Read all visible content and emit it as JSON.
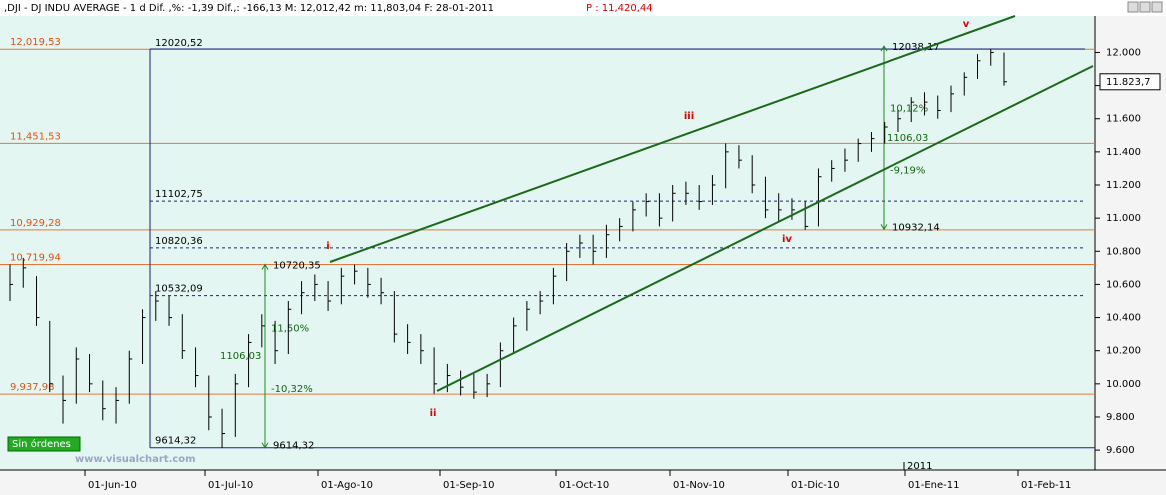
{
  "chart_data": {
    "type": "ohlc",
    "title": ",DJI - DJ INDU AVERAGE -  1 d Dif. ,%: -1,39 Dif.,: -166,13 M: 12,012,42 m: 11,803,04 F: 28-01-2011",
    "price_label": "P : 11,420,44",
    "last_label": "11.823,7",
    "series": [
      {
        "name": "DJI",
        "color": "#000000",
        "close": [
          10600,
          10700,
          10400,
          10000,
          9900,
          10150,
          10000,
          9850,
          9900,
          10150,
          10400,
          10500,
          10400,
          10200,
          10050,
          9800,
          9700,
          10000,
          10250,
          10350,
          10200,
          10450,
          10550,
          10600,
          10500,
          10650,
          10680,
          10600,
          10550,
          10300,
          10250,
          10200,
          10000,
          10050,
          9980,
          9950,
          10000,
          10200,
          10350,
          10450,
          10500,
          10650,
          10800,
          10850,
          10800,
          10900,
          10950,
          11050,
          11100,
          11000,
          11150,
          11150,
          11100,
          11200,
          11400,
          11350,
          11200,
          11050,
          11050,
          11050,
          10950,
          11250,
          11300,
          11350,
          11450,
          11480,
          11550,
          11600,
          11700,
          11700,
          11650,
          11750,
          11850,
          11950,
          12000,
          11823
        ],
        "high": [
          10720,
          10760,
          10650,
          10380,
          10050,
          10220,
          10180,
          10020,
          9980,
          10200,
          10450,
          10560,
          10530,
          10420,
          10220,
          10050,
          9850,
          10060,
          10300,
          10420,
          10380,
          10500,
          10620,
          10660,
          10620,
          10700,
          10720,
          10700,
          10640,
          10560,
          10360,
          10300,
          10220,
          10120,
          10080,
          10060,
          10060,
          10250,
          10400,
          10500,
          10560,
          10700,
          10850,
          10900,
          10900,
          10960,
          11000,
          11100,
          11150,
          11150,
          11200,
          11220,
          11200,
          11260,
          11451,
          11440,
          11380,
          11250,
          11150,
          11120,
          11100,
          11300,
          11350,
          11420,
          11480,
          11520,
          11580,
          11650,
          11730,
          11760,
          11740,
          11800,
          11880,
          11990,
          12020,
          12000
        ],
        "low": [
          10500,
          10580,
          10350,
          9950,
          9760,
          9880,
          9950,
          9780,
          9760,
          9880,
          10120,
          10380,
          10350,
          10150,
          9980,
          9720,
          9614,
          9680,
          9980,
          10220,
          10120,
          10180,
          10420,
          10500,
          10440,
          10480,
          10600,
          10520,
          10480,
          10250,
          10180,
          10120,
          9940,
          9950,
          9930,
          9910,
          9920,
          9980,
          10180,
          10320,
          10420,
          10480,
          10620,
          10760,
          10720,
          10760,
          10860,
          10920,
          11010,
          10950,
          10980,
          11080,
          11050,
          11080,
          11180,
          11300,
          11150,
          11000,
          10980,
          10990,
          10930,
          10950,
          11220,
          11280,
          11340,
          11400,
          11450,
          11520,
          11580,
          11620,
          11600,
          11640,
          11740,
          11840,
          11920,
          11800
        ]
      }
    ],
    "ylim": [
      9480,
      12220
    ],
    "yticks": [
      {
        "value": 12000,
        "label": "12.000"
      },
      {
        "value": 11800,
        "label": "11.800"
      },
      {
        "value": 11600,
        "label": "11.600"
      },
      {
        "value": 11400,
        "label": "11.400"
      },
      {
        "value": 11200,
        "label": "11.200"
      },
      {
        "value": 11000,
        "label": "11.000"
      },
      {
        "value": 10800,
        "label": "10.800"
      },
      {
        "value": 10600,
        "label": "10.600"
      },
      {
        "value": 10400,
        "label": "10.400"
      },
      {
        "value": 10200,
        "label": "10.200"
      },
      {
        "value": 10000,
        "label": "10.000"
      },
      {
        "value": 9800,
        "label": "9.800"
      },
      {
        "value": 9600,
        "label": "9.600"
      }
    ],
    "xticks": [
      "01-Jun-10",
      "01-Jul-10",
      "01-Ago-10",
      "01-Sep-10",
      "01-Oct-10",
      "01-Nov-10",
      "01-Dic-10",
      "01-Ene-11",
      "01-Feb-11"
    ],
    "year_label": "2011",
    "levels": [
      {
        "value": 12019.53,
        "label": "12,019,53"
      },
      {
        "value": 11451.53,
        "label": "11,451,53"
      },
      {
        "value": 10929.28,
        "label": "10,929,28"
      },
      {
        "value": 10719.94,
        "label": "10,719,94"
      },
      {
        "value": 9937.98,
        "label": "9,937,98"
      }
    ],
    "dashed_levels": [
      {
        "value": 11102.75,
        "label": "11102,75"
      },
      {
        "value": 10820.36,
        "label": "10820,36"
      },
      {
        "value": 10532.09,
        "label": "10532,09"
      }
    ],
    "box": {
      "top": {
        "value": 12020.52,
        "label": "12020,52"
      },
      "bottom": {
        "value": 9614.32,
        "label": "9614,32"
      }
    },
    "measures": [
      {
        "top": {
          "value": 10720.35,
          "label": "10720,35"
        },
        "bottom": {
          "value": 9614.32,
          "label": "9614,32"
        },
        "texts": [
          "11,50%",
          "1106,03",
          "-10,32%"
        ]
      },
      {
        "top": {
          "value": 12038.17,
          "label": "12038,17"
        },
        "bottom": {
          "value": 10932.14,
          "label": "10932,14"
        },
        "texts": [
          "10,12%",
          "1106,03",
          "-9,19%"
        ]
      }
    ],
    "waves": [
      "i",
      "ii",
      "iii",
      "iv",
      "v"
    ],
    "status": "Sin órdenes",
    "watermark": "www.visualchart.com"
  }
}
